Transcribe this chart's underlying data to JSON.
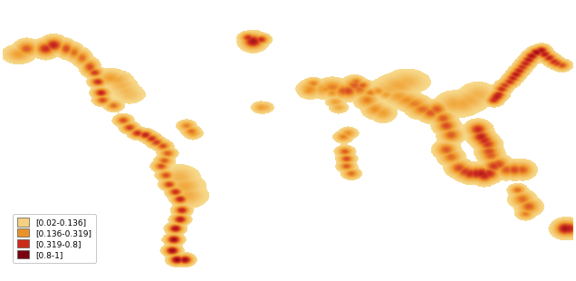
{
  "legend_entries": [
    {
      "label": "[0.02-0.136]",
      "color": "#F5D080"
    },
    {
      "label": "[0.136-0.319]",
      "color": "#E8932A"
    },
    {
      "label": "[0.319-0.8]",
      "color": "#CC2B1A"
    },
    {
      "label": "[0.8-1]",
      "color": "#7A0010"
    }
  ],
  "background_color": "#FFFFFF",
  "figsize": [
    6.36,
    3.1
  ],
  "dpi": 100,
  "legend_fontsize": 6.5,
  "hotspots": [
    [
      -170,
      57,
      0.35,
      5,
      3
    ],
    [
      -165,
      60,
      0.55,
      4,
      3
    ],
    [
      -153,
      60,
      0.7,
      4,
      3
    ],
    [
      -148,
      62,
      0.75,
      4,
      3
    ],
    [
      -140,
      60,
      0.6,
      3,
      3
    ],
    [
      -135,
      58,
      0.5,
      3,
      3
    ],
    [
      -130,
      55,
      0.5,
      3,
      3
    ],
    [
      -125,
      50,
      0.6,
      3,
      3
    ],
    [
      -122,
      47,
      0.65,
      3,
      2
    ],
    [
      -120,
      42,
      0.7,
      3,
      2
    ],
    [
      -118,
      36,
      0.75,
      3,
      2
    ],
    [
      -117,
      32,
      0.6,
      3,
      2
    ],
    [
      -110,
      29,
      0.5,
      3,
      2
    ],
    [
      -104,
      21,
      0.6,
      3,
      2
    ],
    [
      -100,
      17,
      0.65,
      3,
      2
    ],
    [
      -95,
      14,
      0.7,
      3,
      2
    ],
    [
      -90,
      13,
      0.75,
      3,
      2
    ],
    [
      -86,
      11,
      0.7,
      3,
      2
    ],
    [
      -83,
      9,
      0.65,
      3,
      2
    ],
    [
      -79,
      7,
      0.6,
      3,
      2
    ],
    [
      -76,
      3,
      0.55,
      3,
      2
    ],
    [
      -78,
      -1,
      0.55,
      3,
      2
    ],
    [
      -80,
      -4,
      0.6,
      3,
      2
    ],
    [
      -77,
      -9,
      0.6,
      3,
      2
    ],
    [
      -75,
      -14,
      0.65,
      3,
      2
    ],
    [
      -71,
      -18,
      0.7,
      3,
      2
    ],
    [
      -68,
      -22,
      0.75,
      3,
      2
    ],
    [
      -67,
      -28,
      0.75,
      3,
      2
    ],
    [
      -68,
      -33,
      0.8,
      3,
      2
    ],
    [
      -71,
      -38,
      0.85,
      3,
      2
    ],
    [
      -72,
      -44,
      0.9,
      3,
      2
    ],
    [
      -73,
      -50,
      0.9,
      3,
      2
    ],
    [
      -70,
      -55,
      0.95,
      3,
      2
    ],
    [
      -65,
      -55,
      0.9,
      3,
      2
    ],
    [
      -22,
      64,
      0.85,
      4,
      3
    ],
    [
      -25,
      66,
      0.7,
      3,
      2
    ],
    [
      -17,
      65,
      0.7,
      3,
      2
    ],
    [
      28,
      39,
      0.45,
      5,
      3
    ],
    [
      35,
      37,
      0.55,
      4,
      3
    ],
    [
      38,
      37,
      0.6,
      4,
      3
    ],
    [
      42,
      40,
      0.55,
      4,
      3
    ],
    [
      45,
      38,
      0.5,
      4,
      3
    ],
    [
      50,
      32,
      0.45,
      4,
      3
    ],
    [
      55,
      27,
      0.4,
      4,
      3
    ],
    [
      60,
      25,
      0.35,
      4,
      3
    ],
    [
      43,
      42,
      0.5,
      3,
      2
    ],
    [
      47,
      40,
      0.55,
      3,
      2
    ],
    [
      52,
      36,
      0.45,
      3,
      2
    ],
    [
      57,
      37,
      0.4,
      3,
      2
    ],
    [
      62,
      35,
      0.35,
      3,
      2
    ],
    [
      36,
      4,
      0.55,
      3,
      2
    ],
    [
      37,
      0,
      0.6,
      3,
      2
    ],
    [
      37,
      -4,
      0.55,
      3,
      2
    ],
    [
      40,
      -8,
      0.5,
      3,
      2
    ],
    [
      35,
      12,
      0.45,
      3,
      2
    ],
    [
      38,
      14,
      0.4,
      3,
      2
    ],
    [
      70,
      34,
      0.35,
      5,
      3
    ],
    [
      75,
      32,
      0.4,
      5,
      3
    ],
    [
      80,
      30,
      0.45,
      5,
      3
    ],
    [
      85,
      27,
      0.5,
      5,
      3
    ],
    [
      90,
      25,
      0.55,
      4,
      3
    ],
    [
      94,
      27,
      0.55,
      4,
      3
    ],
    [
      98,
      22,
      0.55,
      4,
      3
    ],
    [
      100,
      18,
      0.6,
      4,
      3
    ],
    [
      103,
      13,
      0.55,
      4,
      3
    ],
    [
      100,
      5,
      0.55,
      4,
      3
    ],
    [
      103,
      1,
      0.5,
      4,
      3
    ],
    [
      108,
      -5,
      0.6,
      4,
      3
    ],
    [
      112,
      -7,
      0.65,
      4,
      3
    ],
    [
      115,
      -8,
      0.7,
      4,
      3
    ],
    [
      119,
      -8,
      0.75,
      4,
      3
    ],
    [
      122,
      -8,
      0.8,
      4,
      3
    ],
    [
      124,
      -9,
      0.75,
      4,
      3
    ],
    [
      127,
      -8,
      0.7,
      4,
      3
    ],
    [
      130,
      -4,
      0.65,
      4,
      3
    ],
    [
      133,
      -3,
      0.6,
      4,
      3
    ],
    [
      138,
      -6,
      0.55,
      4,
      3
    ],
    [
      143,
      -6,
      0.6,
      4,
      3
    ],
    [
      148,
      -6,
      0.55,
      4,
      3
    ],
    [
      120,
      16,
      0.7,
      4,
      3
    ],
    [
      122,
      12,
      0.75,
      4,
      3
    ],
    [
      124,
      10,
      0.7,
      4,
      3
    ],
    [
      126,
      8,
      0.65,
      4,
      3
    ],
    [
      127,
      4,
      0.6,
      4,
      3
    ],
    [
      128,
      2,
      0.55,
      4,
      3
    ],
    [
      130,
      32,
      0.7,
      3,
      2
    ],
    [
      131,
      33,
      0.75,
      3,
      2
    ],
    [
      132,
      34,
      0.8,
      3,
      2
    ],
    [
      133,
      35,
      0.75,
      3,
      2
    ],
    [
      135,
      38,
      0.7,
      3,
      2
    ],
    [
      137,
      40,
      0.65,
      3,
      2
    ],
    [
      140,
      42,
      0.7,
      3,
      2
    ],
    [
      142,
      44,
      0.75,
      3,
      2
    ],
    [
      144,
      46,
      0.8,
      3,
      2
    ],
    [
      146,
      48,
      0.75,
      3,
      2
    ],
    [
      148,
      50,
      0.7,
      3,
      2
    ],
    [
      150,
      52,
      0.75,
      3,
      2
    ],
    [
      152,
      54,
      0.8,
      3,
      2
    ],
    [
      154,
      56,
      0.85,
      3,
      2
    ],
    [
      157,
      58,
      0.9,
      3,
      2
    ],
    [
      160,
      59,
      0.85,
      3,
      2
    ],
    [
      162,
      57,
      0.8,
      3,
      2
    ],
    [
      165,
      55,
      0.75,
      3,
      2
    ],
    [
      168,
      53,
      0.7,
      3,
      2
    ],
    [
      170,
      52,
      0.65,
      3,
      2
    ],
    [
      173,
      51,
      0.6,
      3,
      2
    ],
    [
      175,
      -38,
      0.85,
      4,
      3
    ],
    [
      177,
      -38,
      0.8,
      4,
      3
    ],
    [
      148,
      -22,
      0.5,
      4,
      3
    ],
    [
      152,
      -26,
      0.55,
      4,
      3
    ],
    [
      150,
      -30,
      0.45,
      3,
      2
    ],
    [
      145,
      -17,
      0.5,
      3,
      2
    ],
    [
      -60,
      14,
      0.4,
      3,
      2
    ],
    [
      -64,
      18,
      0.45,
      3,
      2
    ],
    [
      -61,
      15,
      0.5,
      3,
      2
    ],
    [
      14,
      38,
      0.4,
      4,
      3
    ],
    [
      16,
      41,
      0.45,
      3,
      2
    ],
    [
      13,
      37,
      0.4,
      3,
      2
    ],
    [
      15,
      41,
      0.35,
      3,
      2
    ],
    [
      -15,
      28,
      0.3,
      3,
      2
    ],
    [
      -17,
      28,
      0.35,
      3,
      2
    ],
    [
      22,
      38,
      0.35,
      4,
      3
    ],
    [
      24,
      38,
      0.4,
      3,
      2
    ],
    [
      28,
      36,
      0.4,
      3,
      2
    ],
    [
      30,
      31,
      0.35,
      3,
      2
    ],
    [
      32,
      28,
      0.3,
      3,
      2
    ],
    [
      -112,
      44,
      0.35,
      5,
      3
    ],
    [
      -108,
      43,
      0.3,
      5,
      3
    ],
    [
      -105,
      40,
      0.25,
      5,
      3
    ],
    [
      -102,
      37,
      0.22,
      5,
      3
    ],
    [
      -100,
      35,
      0.2,
      5,
      3
    ],
    [
      -65,
      -15,
      0.3,
      6,
      4
    ],
    [
      -68,
      -10,
      0.25,
      6,
      4
    ],
    [
      -63,
      -20,
      0.28,
      6,
      4
    ],
    [
      65,
      38,
      0.25,
      7,
      4
    ],
    [
      70,
      40,
      0.3,
      7,
      4
    ],
    [
      75,
      42,
      0.25,
      7,
      4
    ],
    [
      110,
      30,
      0.3,
      6,
      4
    ],
    [
      115,
      32,
      0.28,
      6,
      4
    ],
    [
      120,
      35,
      0.25,
      6,
      4
    ],
    [
      105,
      30,
      0.3,
      6,
      4
    ]
  ]
}
